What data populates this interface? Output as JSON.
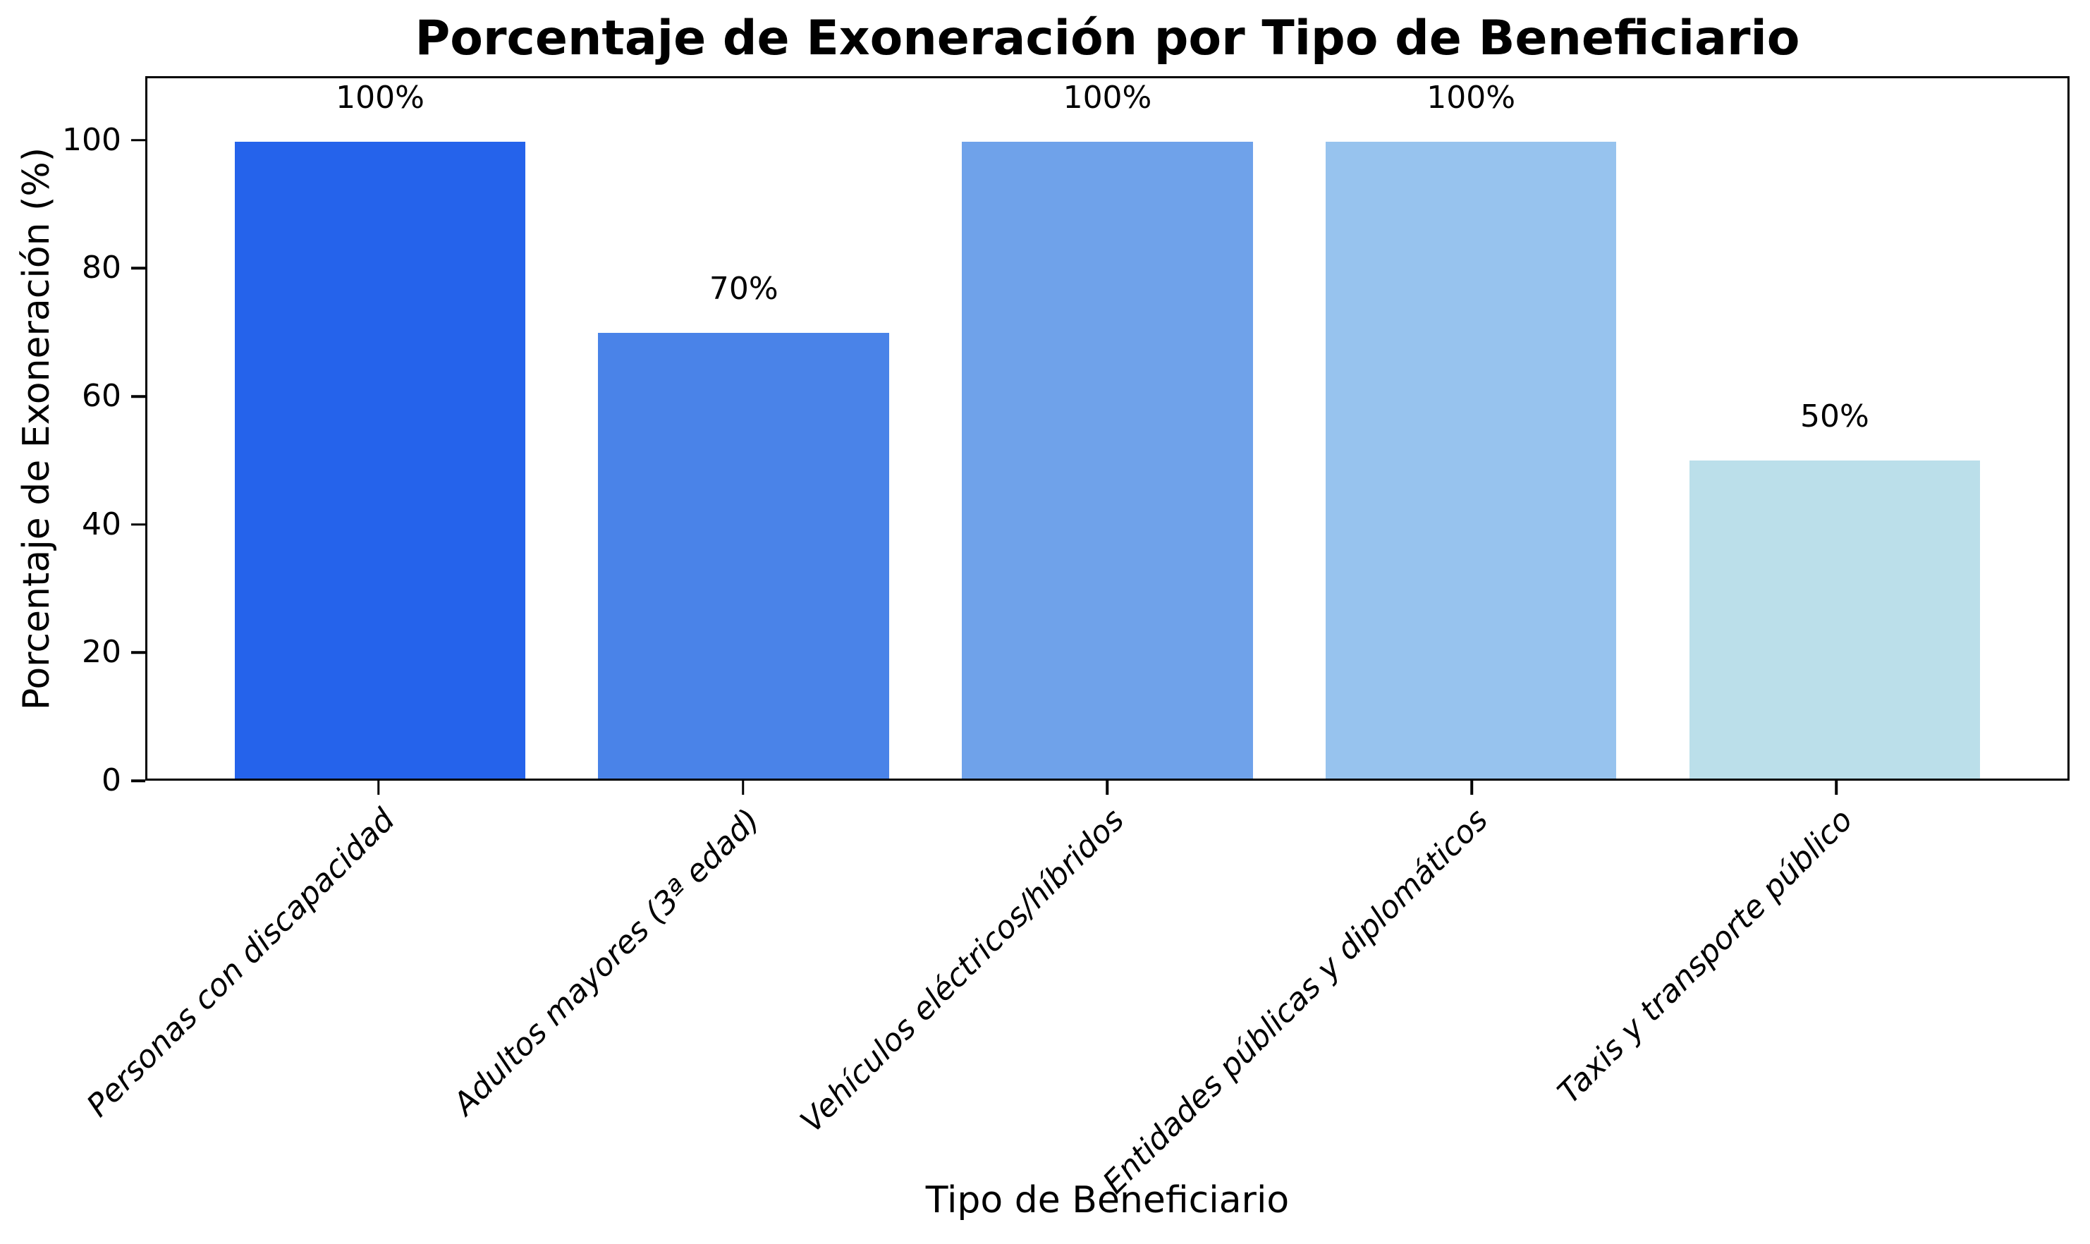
{
  "figure": {
    "background": "#ffffff",
    "axis_color": "#000000",
    "text_color": "#000000"
  },
  "chart_data": {
    "type": "bar",
    "title": "Porcentaje de Exoneración por Tipo de Beneficiario",
    "xlabel": "Tipo de Beneficiario",
    "ylabel": "Porcentaje de Exoneración (%)",
    "categories": [
      "Personas con discapacidad",
      "Adultos mayores (3ª edad)",
      "Vehículos eléctricos/híbridos",
      "Entidades públicas y diplomáticos",
      "Taxis y transporte público"
    ],
    "values": [
      100,
      70,
      100,
      100,
      50
    ],
    "bar_value_labels": [
      "100%",
      "70%",
      "100%",
      "100%",
      "50%"
    ],
    "bar_colors": [
      "#2563eb",
      "#4a83e8",
      "#6fa2ea",
      "#97c3ee",
      "#bbdfea"
    ],
    "ylim": [
      0,
      110
    ],
    "yticks": [
      0,
      20,
      40,
      60,
      80,
      100
    ],
    "yticklabels": [
      "0",
      "20",
      "40",
      "60",
      "80",
      "100"
    ],
    "grid": false,
    "legend": false,
    "xtick_label_style": "italic",
    "xtick_label_rotation_deg": 45
  }
}
